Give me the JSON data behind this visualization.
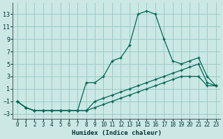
{
  "bg_color": "#cce8e4",
  "grid_color": "#99ccc8",
  "line_color": "#006655",
  "xlim": [
    -0.5,
    23.5
  ],
  "ylim": [
    -3.8,
    14.8
  ],
  "xticks": [
    0,
    1,
    2,
    3,
    4,
    5,
    6,
    7,
    8,
    9,
    10,
    11,
    12,
    13,
    14,
    15,
    16,
    17,
    18,
    19,
    20,
    21,
    22,
    23
  ],
  "yticks": [
    -3,
    -1,
    1,
    3,
    5,
    7,
    9,
    11,
    13
  ],
  "xlabel": "Humidex (Indice chaleur)",
  "line1_x": [
    0,
    1,
    2,
    3,
    4,
    5,
    6,
    7,
    8,
    9,
    10,
    11,
    12,
    13,
    14,
    15,
    16,
    17,
    18,
    19,
    20,
    21,
    22,
    23
  ],
  "line1_y": [
    -1,
    -2,
    -2.5,
    -2.5,
    -2.5,
    -2.5,
    -2.5,
    -2.5,
    2,
    2,
    3,
    5.5,
    6,
    8,
    13,
    13.5,
    13,
    9,
    5.5,
    5,
    5.5,
    6,
    3,
    1.5
  ],
  "line2_x": [
    0,
    1,
    2,
    3,
    4,
    5,
    6,
    7,
    8,
    9,
    10,
    11,
    12,
    13,
    14,
    15,
    16,
    17,
    18,
    19,
    20,
    21,
    22,
    23
  ],
  "line2_y": [
    -1,
    -2,
    -2.5,
    -2.5,
    -2.5,
    -2.5,
    -2.5,
    -2.5,
    -2.5,
    -1,
    -0.5,
    0,
    0.5,
    1,
    1.5,
    2,
    2.5,
    3,
    3.5,
    4,
    4.5,
    5,
    2,
    1.5
  ],
  "line3_x": [
    0,
    1,
    2,
    3,
    4,
    5,
    6,
    7,
    8,
    9,
    10,
    11,
    12,
    13,
    14,
    15,
    16,
    17,
    18,
    19,
    20,
    21,
    22,
    23
  ],
  "line3_y": [
    -1,
    -2,
    -2.5,
    -2.5,
    -2.5,
    -2.5,
    -2.5,
    -2.5,
    -2.5,
    -2,
    -1.5,
    -1,
    -0.5,
    0,
    0.5,
    1,
    1.5,
    2,
    2.5,
    3,
    3,
    3,
    1.5,
    1.5
  ],
  "font_family": "monospace"
}
